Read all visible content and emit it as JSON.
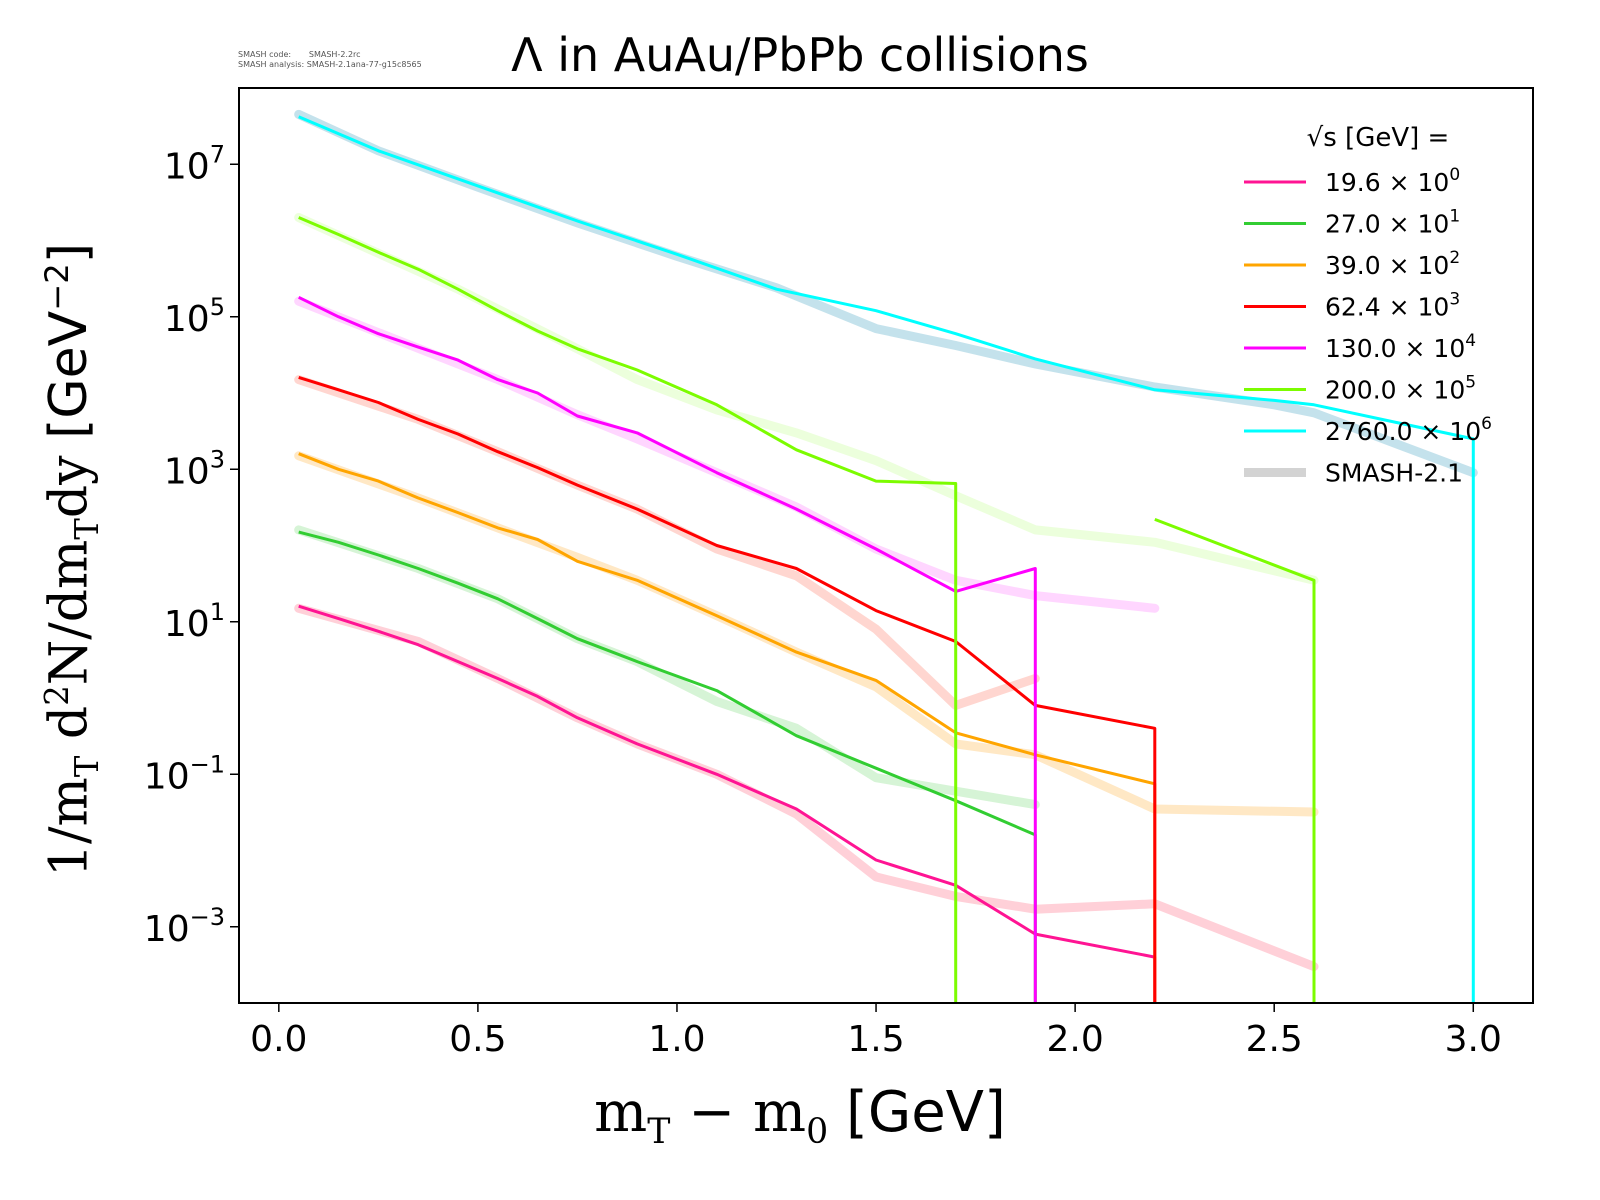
{
  "meta": {
    "code_label": "SMASH code:",
    "code_value": "SMASH-2.2rc",
    "analysis_label": "SMASH analysis:",
    "analysis_value": "SMASH-2.1ana-77-g15c8565"
  },
  "chart_data": {
    "type": "line",
    "title": "Λ in AuAu/PbPb collisions",
    "xlabel": "m_T - m_0 [GeV]",
    "ylabel": "1/m_T d^2N/dm_Tdy [GeV^-2]",
    "xlim": [
      -0.1,
      3.15
    ],
    "ylim": [
      0.0001,
      100000000
    ],
    "yscale": "log",
    "x_ticks": [
      "0.0",
      "0.5",
      "1.0",
      "1.5",
      "2.0",
      "2.5",
      "3.0"
    ],
    "y_ticks": [
      {
        "base": "10",
        "exp": "7",
        "value": 10000000
      },
      {
        "base": "10",
        "exp": "5",
        "value": 100000
      },
      {
        "base": "10",
        "exp": "3",
        "value": 1000
      },
      {
        "base": "10",
        "exp": "1",
        "value": 10
      },
      {
        "base": "10",
        "exp": "−1",
        "value": 0.1
      },
      {
        "base": "10",
        "exp": "−3",
        "value": 0.001
      }
    ],
    "grid": false,
    "legend": {
      "placement": "top-right",
      "title": "√s  [GeV] =",
      "entries": [
        {
          "label": "19.6",
          "exp": "0",
          "color": "#ff1493"
        },
        {
          "label": "27.0",
          "exp": "1",
          "color": "#32cd32"
        },
        {
          "label": "39.0",
          "exp": "2",
          "color": "#ffa500"
        },
        {
          "label": "62.4",
          "exp": "3",
          "color": "#ff0000"
        },
        {
          "label": "130.0",
          "exp": "4",
          "color": "#ff00ff"
        },
        {
          "label": "200.0",
          "exp": "5",
          "color": "#7cfc00"
        },
        {
          "label": "2760.0",
          "exp": "6",
          "color": "#00ffff"
        },
        {
          "label": "SMASH-2.1",
          "color": "#d3d3d3",
          "ref": true
        }
      ]
    },
    "series": [
      {
        "color": "#ff1493",
        "x": [
          0.05,
          0.15,
          0.25,
          0.35,
          0.45,
          0.55,
          0.65,
          0.75,
          0.9,
          1.1,
          1.3,
          1.5,
          1.7,
          1.9,
          2.2
        ],
        "y": [
          16,
          11,
          7.5,
          5,
          3,
          1.8,
          1.05,
          0.55,
          0.25,
          0.1,
          0.035,
          0.0075,
          0.0035,
          0.0008,
          0.0004
        ]
      },
      {
        "color": "#32cd32",
        "x": [
          0.05,
          0.15,
          0.25,
          0.35,
          0.45,
          0.55,
          0.65,
          0.75,
          0.9,
          1.1,
          1.3,
          1.5,
          1.7,
          1.9
        ],
        "y": [
          150,
          110,
          75,
          50,
          32,
          20,
          11,
          6,
          3,
          1.25,
          0.32,
          0.12,
          0.045,
          0.016
        ]
      },
      {
        "color": "#ffa500",
        "x": [
          0.05,
          0.15,
          0.25,
          0.35,
          0.45,
          0.55,
          0.65,
          0.75,
          0.9,
          1.1,
          1.3,
          1.5,
          1.7,
          1.9,
          2.2
        ],
        "y": [
          1600,
          1000,
          700,
          420,
          270,
          170,
          120,
          62,
          35,
          12,
          4,
          1.7,
          0.35,
          0.18,
          0.075
        ]
      },
      {
        "color": "#ff0000",
        "x": [
          0.05,
          0.15,
          0.25,
          0.35,
          0.45,
          0.55,
          0.65,
          0.75,
          0.9,
          1.1,
          1.3,
          1.5,
          1.7,
          1.9,
          2.2
        ],
        "y": [
          16000,
          11000,
          7500,
          4500,
          2900,
          1700,
          1050,
          620,
          300,
          100,
          50,
          14,
          5.5,
          0.8,
          0.4
        ]
      },
      {
        "color": "#ff00ff",
        "x": [
          0.05,
          0.15,
          0.25,
          0.35,
          0.45,
          0.55,
          0.65,
          0.75,
          0.9,
          1.1,
          1.3,
          1.5,
          1.7,
          1.9
        ],
        "y": [
          180000,
          100000,
          60000,
          40000,
          27000,
          15000,
          10000,
          5000,
          3000,
          900,
          300,
          90,
          25,
          50
        ]
      },
      {
        "color": "#7cfc00",
        "x": [
          0.05,
          0.15,
          0.25,
          0.35,
          0.45,
          0.55,
          0.65,
          0.75,
          0.9,
          1.1,
          1.3,
          1.5,
          1.7
        ],
        "y": [
          2000000,
          1200000,
          700000,
          420000,
          230000,
          120000,
          65000,
          38000,
          20000,
          7000,
          1800,
          700,
          650
        ]
      },
      {
        "color": "#7cfc00",
        "x": [
          2.2,
          2.6
        ],
        "y": [
          220,
          35
        ]
      },
      {
        "color": "#00ffff",
        "x": [
          0.05,
          0.25,
          0.5,
          0.75,
          1.0,
          1.25,
          1.5,
          1.7,
          1.9,
          2.2,
          2.5,
          2.6,
          3.0
        ],
        "y": [
          42000000,
          15000000,
          5200000,
          1800000,
          660000,
          230000,
          120000,
          60000,
          28000,
          11000,
          8000,
          7000,
          2500
        ]
      }
    ],
    "reference_series": [
      {
        "color": "#ffc0cb",
        "x": [
          0.05,
          0.35,
          0.55,
          0.75,
          0.9,
          1.1,
          1.3,
          1.5,
          1.7,
          1.9,
          2.2,
          2.6
        ],
        "y": [
          15,
          5.5,
          1.8,
          0.55,
          0.25,
          0.1,
          0.03,
          0.0045,
          0.0025,
          0.0017,
          0.002,
          0.0003
        ]
      },
      {
        "color": "#c8f0c8",
        "x": [
          0.05,
          0.35,
          0.55,
          0.75,
          0.9,
          1.1,
          1.3,
          1.5,
          1.7,
          1.9
        ],
        "y": [
          160,
          50,
          20,
          6,
          3,
          0.9,
          0.4,
          0.09,
          0.06,
          0.04
        ]
      },
      {
        "color": "#ffe0b2",
        "x": [
          0.05,
          0.35,
          0.55,
          0.75,
          0.9,
          1.1,
          1.3,
          1.5,
          1.7,
          1.9,
          2.2,
          2.6
        ],
        "y": [
          1500,
          420,
          170,
          70,
          35,
          12,
          4,
          1.4,
          0.25,
          0.18,
          0.035,
          0.032
        ]
      },
      {
        "color": "#ffc8c0",
        "x": [
          0.05,
          0.35,
          0.55,
          0.75,
          0.9,
          1.1,
          1.3,
          1.5,
          1.7,
          1.9
        ],
        "y": [
          15000,
          4500,
          1700,
          620,
          300,
          90,
          40,
          8,
          0.8,
          1.8
        ]
      },
      {
        "color": "#ffc8ff",
        "x": [
          0.05,
          0.45,
          0.55,
          0.75,
          0.9,
          1.1,
          1.3,
          1.5,
          1.7,
          1.9,
          2.2
        ],
        "y": [
          160000,
          24000,
          15000,
          5200,
          2500,
          900,
          320,
          90,
          35,
          22,
          15
        ]
      },
      {
        "color": "#e6ffd0",
        "x": [
          0.05,
          0.45,
          0.75,
          0.9,
          1.1,
          1.3,
          1.5,
          1.7,
          1.9,
          2.2,
          2.6
        ],
        "y": [
          2000000,
          230000,
          38000,
          15000,
          6000,
          3000,
          1300,
          450,
          160,
          110,
          35
        ]
      },
      {
        "color": "#b0d8e6",
        "x": [
          0.05,
          0.25,
          0.5,
          0.75,
          1.0,
          1.25,
          1.5,
          1.7,
          1.9,
          2.2,
          2.5,
          2.6,
          3.0
        ],
        "y": [
          45000000,
          15000000,
          5000000,
          1700000,
          620000,
          240000,
          70000,
          42000,
          24000,
          12000,
          7000,
          5500,
          900
        ]
      }
    ]
  }
}
